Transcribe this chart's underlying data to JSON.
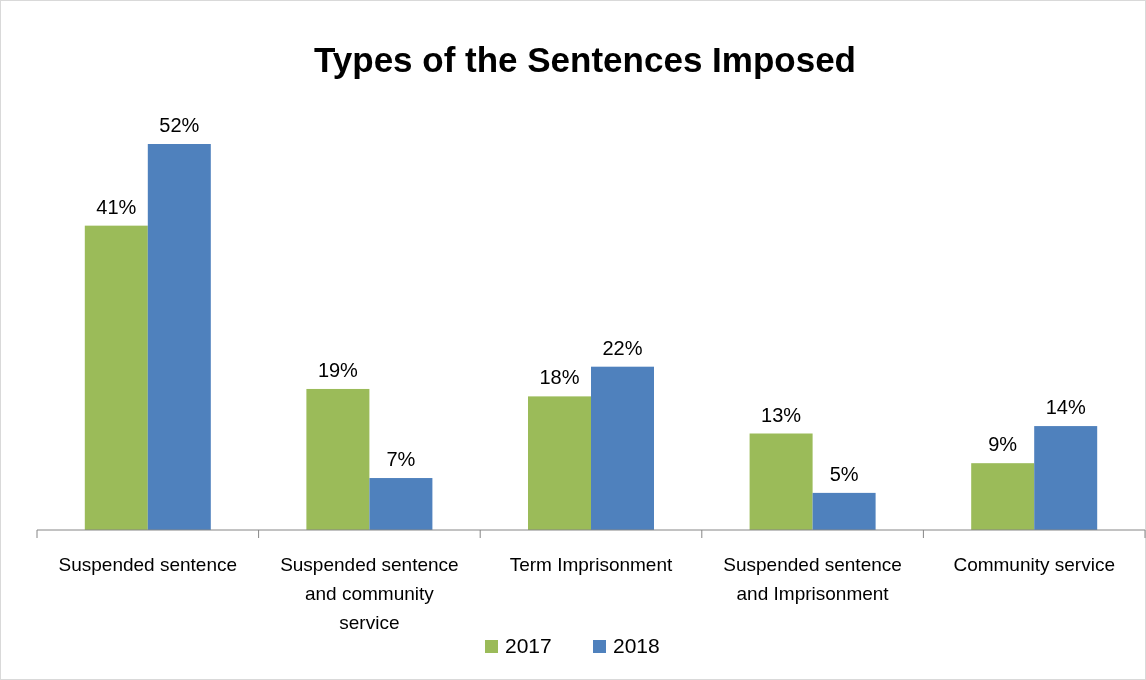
{
  "chart_data": {
    "type": "bar",
    "title": "Types of the Sentences Imposed",
    "categories": [
      "Suspended sentence",
      "Suspended sentence and community service",
      "Term Imprisonment",
      "Suspended sentence and Imprisonment",
      "Community service"
    ],
    "series": [
      {
        "name": "2017",
        "color": "#9bbb59",
        "values": [
          41,
          19,
          18,
          13,
          9
        ],
        "value_labels": [
          "41%",
          "19%",
          "18%",
          "13%",
          "9%"
        ]
      },
      {
        "name": "2018",
        "color": "#4f81bd",
        "values": [
          52,
          7,
          22,
          5,
          14
        ],
        "value_labels": [
          "52%",
          "7%",
          "22%",
          "5%",
          "14%"
        ]
      }
    ],
    "legend": "bottom"
  }
}
